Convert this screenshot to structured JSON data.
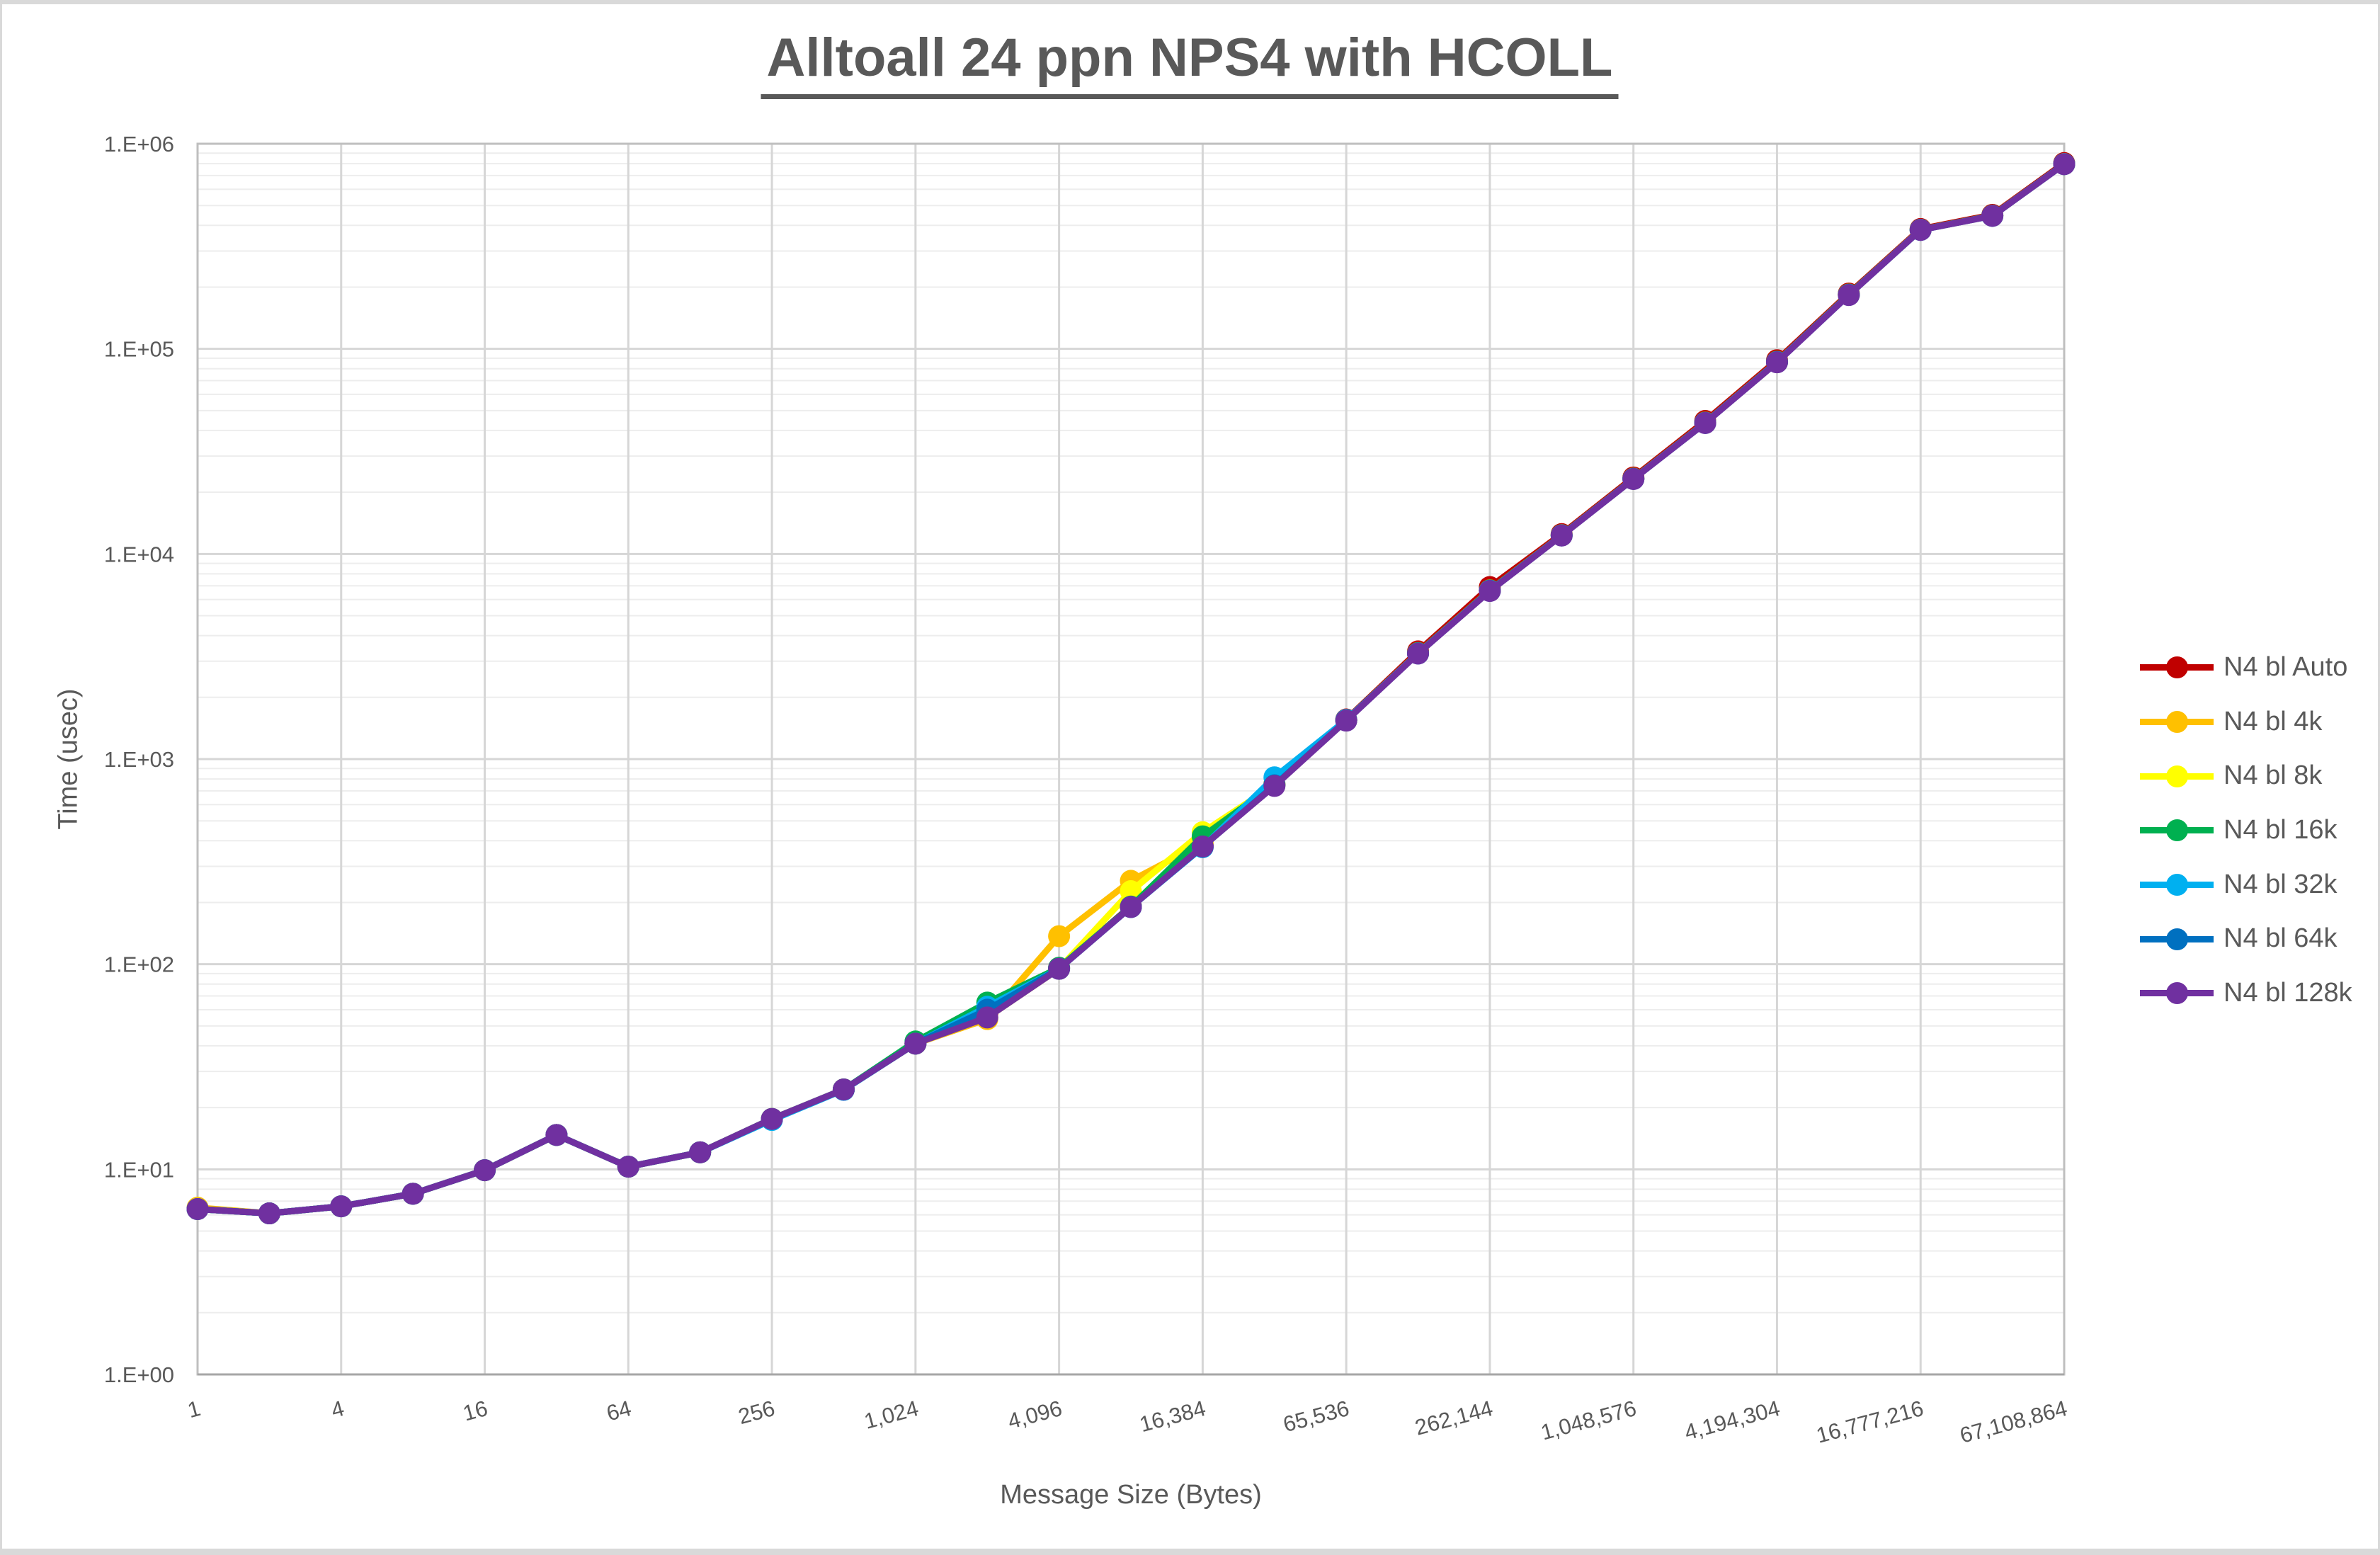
{
  "title_text": "Alltoall 24 ppn NPS4 with HCOLL",
  "text_color": "#595959",
  "frame_color": "#d9d9d9",
  "chart_data": {
    "type": "line",
    "title": "Alltoall 24 ppn NPS4 with HCOLL",
    "xlabel": "Message Size (Bytes)",
    "ylabel": "Time (usec)",
    "x_scale": "log2 categories (powers of 2)",
    "y_scale": "log10",
    "ylim": [
      1,
      1000000
    ],
    "y_tick_labels": [
      "1.E+00",
      "1.E+01",
      "1.E+02",
      "1.E+03",
      "1.E+04",
      "1.E+05",
      "1.E+06"
    ],
    "x_categories": [
      1,
      2,
      4,
      8,
      16,
      32,
      64,
      128,
      256,
      512,
      1024,
      2048,
      4096,
      8192,
      16384,
      32768,
      65536,
      131072,
      262144,
      524288,
      1048576,
      2097152,
      4194304,
      8388608,
      16777216,
      33554432,
      67108864
    ],
    "x_tick_labels": [
      "1",
      "4",
      "16",
      "64",
      "256",
      "1,024",
      "4,096",
      "16,384",
      "65,536",
      "262,144",
      "1,048,576",
      "4,194,304",
      "16,777,216",
      "67,108,864"
    ],
    "grid": {
      "major_color": "#d6d6d6",
      "minor_color": "#ededed",
      "border_color": "#bfbfbf",
      "axis_color": "#a6a6a6",
      "show_minor": true
    },
    "legend_position": "right",
    "series": [
      {
        "name": "N4 bl Auto",
        "color": "#C00000",
        "values": [
          6.4,
          6.1,
          6.6,
          7.6,
          9.9,
          14.7,
          10.3,
          12.1,
          17.6,
          24.5,
          41,
          57,
          96,
          192,
          380,
          755,
          1560,
          3350,
          6900,
          12500,
          23600,
          44500,
          88000,
          186000,
          384000,
          450000,
          805000
        ]
      },
      {
        "name": "N4 bl 4k",
        "color": "#FFC000",
        "values": [
          6.5,
          6.1,
          6.6,
          7.6,
          9.9,
          14.7,
          10.3,
          12.1,
          17.6,
          24.5,
          41,
          54,
          137,
          255,
          390,
          750,
          1550,
          3290,
          6650,
          12350,
          23300,
          43700,
          86500,
          184000,
          381000,
          446000,
          797000
        ]
      },
      {
        "name": "N4 bl 8k",
        "color": "#FFFF00",
        "values": [
          6.4,
          6.1,
          6.6,
          7.6,
          9.9,
          14.7,
          10.3,
          12.1,
          17.6,
          24.5,
          41,
          55,
          95,
          227,
          440,
          748,
          1545,
          3280,
          6630,
          12330,
          23250,
          43600,
          86300,
          183500,
          380500,
          445500,
          796000
        ]
      },
      {
        "name": "N4 bl 16k",
        "color": "#00B050",
        "values": [
          6.4,
          6.1,
          6.6,
          7.6,
          9.9,
          14.7,
          10.3,
          12.1,
          17.6,
          24.5,
          42,
          65,
          96,
          191,
          420,
          752,
          1548,
          3285,
          6640,
          12340,
          23270,
          43650,
          86400,
          183800,
          380800,
          445800,
          796500
        ]
      },
      {
        "name": "N4 bl 32k",
        "color": "#00B0F0",
        "values": [
          6.4,
          6.1,
          6.6,
          7.6,
          9.9,
          14.7,
          10.3,
          12.1,
          17.4,
          24.4,
          41,
          62,
          95,
          190,
          372,
          815,
          1552,
          3275,
          6620,
          12320,
          23230,
          43550,
          86200,
          183300,
          380300,
          445300,
          795800
        ]
      },
      {
        "name": "N4 bl 64k",
        "color": "#0070C0",
        "values": [
          6.4,
          6.1,
          6.6,
          7.6,
          9.9,
          14.7,
          10.3,
          12.1,
          17.6,
          24.5,
          41,
          60,
          95,
          190,
          374,
          745,
          1542,
          3272,
          6610,
          12310,
          23220,
          43520,
          86100,
          183100,
          380100,
          445100,
          795300
        ]
      },
      {
        "name": "N4 bl 128k",
        "color": "#7030A0",
        "values": [
          6.4,
          6.1,
          6.6,
          7.6,
          9.9,
          14.7,
          10.3,
          12.1,
          17.6,
          24.5,
          41,
          55,
          95,
          190,
          375,
          740,
          1540,
          3270,
          6600,
          12300,
          23200,
          43500,
          86000,
          183000,
          380000,
          445000,
          795000
        ]
      }
    ]
  }
}
